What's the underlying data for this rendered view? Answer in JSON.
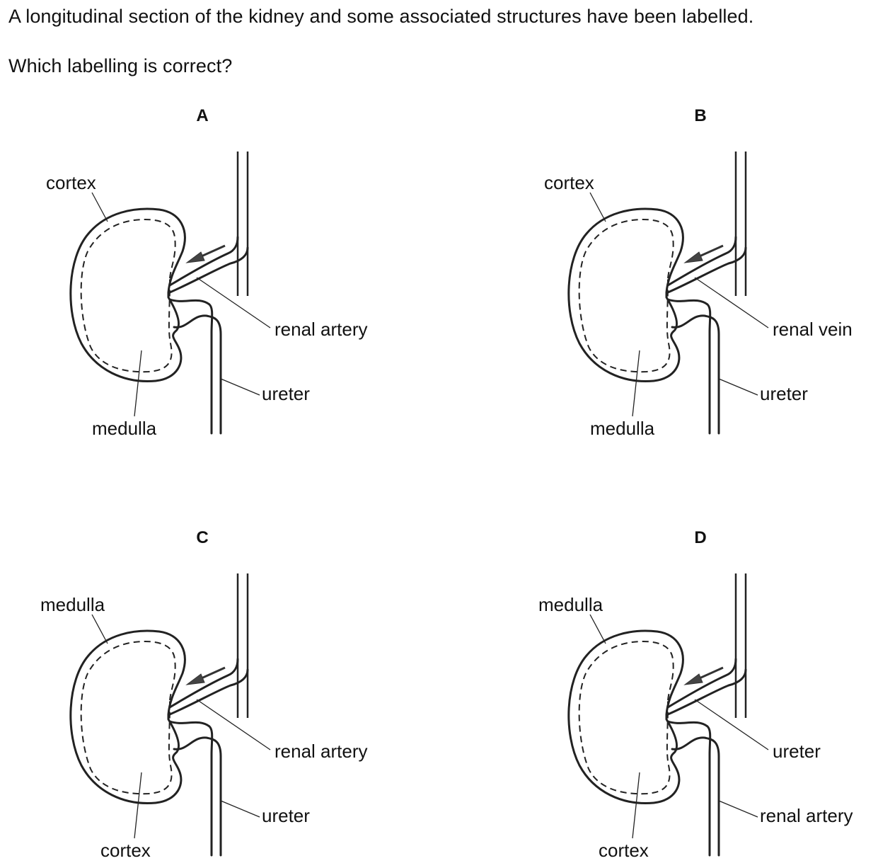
{
  "question": {
    "line1": "A longitudinal section of the kidney and some associated structures have been labelled.",
    "line2": "Which labelling is correct?"
  },
  "options": [
    {
      "letter": "A",
      "top_label": "cortex",
      "bottom_label": "medulla",
      "vessel_label": "renal artery",
      "tube_label": "ureter"
    },
    {
      "letter": "B",
      "top_label": "cortex",
      "bottom_label": "medulla",
      "vessel_label": "renal vein",
      "tube_label": "ureter"
    },
    {
      "letter": "C",
      "top_label": "medulla",
      "bottom_label": "cortex",
      "vessel_label": "renal artery",
      "tube_label": "ureter"
    },
    {
      "letter": "D",
      "top_label": "medulla",
      "bottom_label": "cortex",
      "vessel_label": "ureter",
      "tube_label": "renal artery"
    }
  ]
}
